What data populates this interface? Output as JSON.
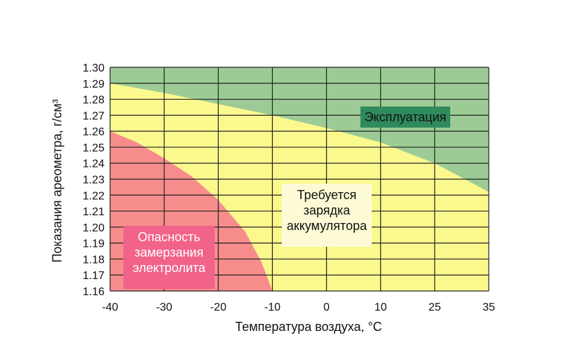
{
  "chart_data": {
    "type": "area",
    "xlabel": "Температура воздуха, °C",
    "ylabel": "Показания ареометра, г/см³",
    "x_ticks": [
      "-40",
      "-30",
      "-20",
      "-10",
      "0",
      "10",
      "25",
      "35"
    ],
    "y_ticks": [
      "1.30",
      "1.29",
      "1.28",
      "1.27",
      "1.26",
      "1.25",
      "1.24",
      "1.23",
      "1.22",
      "1.21",
      "1.20",
      "1.19",
      "1.18",
      "1.17",
      "1.16"
    ],
    "ylim": [
      1.16,
      1.3
    ],
    "grid": true,
    "regions": [
      {
        "name": "Эксплуатация",
        "color": "#9ccb95",
        "label_bg": "#2f8a5c",
        "lower_boundary": {
          "x_index": [
            0,
            1,
            2,
            3,
            4,
            5,
            6,
            7
          ],
          "y": [
            1.29,
            1.284,
            1.277,
            1.27,
            1.262,
            1.253,
            1.24,
            1.222
          ]
        }
      },
      {
        "name": "Требуется зарядка аккумулятора",
        "color": "#fbf98e",
        "label_bg": "#fdfbd6"
      },
      {
        "name": "Опасность замерзания электролита",
        "color": "#f68d8c",
        "label_bg": "#f2638a",
        "upper_boundary": {
          "x_index": [
            0,
            0.5,
            1,
            1.5,
            2,
            2.5,
            2.8,
            3
          ],
          "y": [
            1.26,
            1.253,
            1.243,
            1.232,
            1.217,
            1.197,
            1.178,
            1.16
          ]
        }
      }
    ],
    "labels": {
      "green": "Эксплуатация",
      "yellow": [
        "Требуется",
        "зарядка",
        "аккумулятора"
      ],
      "red": [
        "Опасность",
        "замерзания",
        "электролита"
      ]
    }
  }
}
